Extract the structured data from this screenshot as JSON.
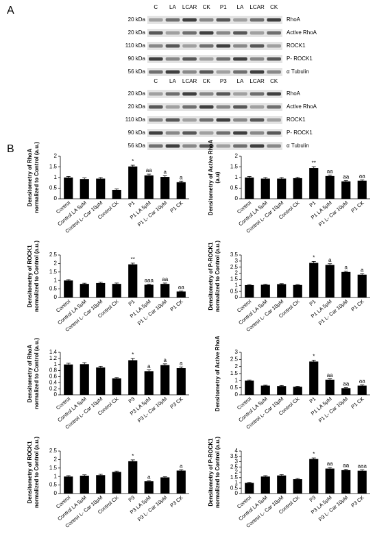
{
  "panel_labels": [
    "A",
    "B"
  ],
  "blots": [
    {
      "lanes": [
        "C",
        "LA",
        "LCAR",
        "CK",
        "P1",
        "LA",
        "LCAR",
        "CK"
      ],
      "rows": [
        {
          "size": "20 kDa",
          "name": "RhoA"
        },
        {
          "size": "20 kDa",
          "name": "Active RhoA"
        },
        {
          "size": "110 kDa",
          "name": "ROCK1"
        },
        {
          "size": "90 kDa",
          "name": "P- ROCK1"
        },
        {
          "size": "56 kDa",
          "name": "α Tubulin"
        }
      ]
    },
    {
      "lanes": [
        "C",
        "LA",
        "LCAR",
        "CK",
        "P3",
        "LA",
        "LCAR",
        "CK"
      ],
      "rows": [
        {
          "size": "20 kDa",
          "name": "RhoA"
        },
        {
          "size": "20 kDa",
          "name": "Active RhoA"
        },
        {
          "size": "110 kDa",
          "name": "ROCK1"
        },
        {
          "size": "90 kDa",
          "name": "P- ROCK1"
        },
        {
          "size": "56 kDa",
          "name": "α Tubulin"
        }
      ]
    }
  ],
  "chart_data": [
    {
      "type": "bar",
      "ylabel": [
        "Densitometry of RhoA",
        "normalized to Control (a.u.)"
      ],
      "categories": [
        "Control",
        "Control LA 5μM",
        "Control L- Car 10μM",
        "Control CK",
        "P1",
        "P1 LA 5μM",
        "P1 L- Car 10μM",
        "P1 CK"
      ],
      "values": [
        1.0,
        0.93,
        0.95,
        0.42,
        1.52,
        1.1,
        1.03,
        0.78
      ],
      "errors": [
        0.05,
        0.05,
        0.05,
        0.04,
        0.06,
        0.06,
        0.06,
        0.05
      ],
      "annotations": [
        null,
        null,
        null,
        null,
        "*",
        "aa",
        "a",
        "a"
      ],
      "color": "#000000",
      "ylim": [
        0,
        2
      ],
      "yticks": [
        0,
        0.5,
        1,
        1.5,
        2
      ]
    },
    {
      "type": "bar",
      "ylabel": [
        "Densitometry of Active RhoA",
        "(a.u)"
      ],
      "categories": [
        "Control",
        "Control LA 5μM",
        "Control L- Car 10μM",
        "Control CK",
        "P1",
        "P1 LA 5μM",
        "P1 L- Car 10μM",
        "P1 CK"
      ],
      "values": [
        1.0,
        0.95,
        0.95,
        0.97,
        1.45,
        1.07,
        0.82,
        0.85
      ],
      "errors": [
        0.05,
        0.05,
        0.05,
        0.05,
        0.06,
        0.05,
        0.04,
        0.04
      ],
      "annotations": [
        null,
        null,
        null,
        null,
        "**",
        "aa",
        "aa",
        "aa"
      ],
      "color": "#000000",
      "ylim": [
        0,
        2
      ],
      "yticks": [
        0,
        0.5,
        1,
        1.5,
        2
      ]
    },
    {
      "type": "bar",
      "ylabel": [
        "Densitometry of ROCK1",
        "normalized to Control (a.u.)"
      ],
      "categories": [
        "Control",
        "Control LA 5μM",
        "Control L- Car 10μM",
        "Control CK",
        "P1",
        "P1 LA 5μM",
        "P1 L- Car 10μM",
        "P1 CK"
      ],
      "values": [
        1.0,
        0.8,
        0.85,
        0.8,
        1.95,
        0.75,
        0.8,
        0.35
      ],
      "errors": [
        0.05,
        0.04,
        0.05,
        0.05,
        0.07,
        0.04,
        0.05,
        0.03
      ],
      "annotations": [
        null,
        null,
        null,
        null,
        "**",
        "aaa",
        "aa",
        "aa"
      ],
      "color": "#000000",
      "ylim": [
        0,
        2.5
      ],
      "yticks": [
        0,
        0.5,
        1,
        1.5,
        2,
        2.5
      ]
    },
    {
      "type": "bar",
      "ylabel": [
        "Densitometry of P-ROCK1",
        "normalized to Control (a.u.)"
      ],
      "categories": [
        "Control",
        "Control LA 5μM",
        "Control L- Car 10μM",
        "Control CK",
        "P1",
        "P1 LA 5μM",
        "P1 L- Car 10μM",
        "P1 CK"
      ],
      "values": [
        1.02,
        1.05,
        1.1,
        1.03,
        2.85,
        2.68,
        2.1,
        1.88
      ],
      "errors": [
        0.04,
        0.04,
        0.04,
        0.04,
        0.12,
        0.1,
        0.08,
        0.08
      ],
      "annotations": [
        null,
        null,
        null,
        null,
        "*",
        "a",
        "a",
        "a"
      ],
      "color": "#000000",
      "ylim": [
        0,
        3.5
      ],
      "yticks": [
        0,
        0.5,
        1,
        1.5,
        2,
        2.5,
        3,
        3.5
      ]
    },
    {
      "type": "bar",
      "ylabel": [
        "Densitometry of RhoA",
        "normalized to Control (a.u.)"
      ],
      "categories": [
        "Control",
        "Control LA 5μM",
        "Control L- Car 10μM",
        "Control CK",
        "P3",
        "P3 LA 5μM",
        "P3 L- Car 10μM",
        "P3 CK"
      ],
      "values": [
        1.0,
        1.01,
        0.9,
        0.54,
        1.14,
        0.78,
        0.98,
        0.88
      ],
      "errors": [
        0.04,
        0.05,
        0.04,
        0.03,
        0.06,
        0.04,
        0.04,
        0.04
      ],
      "annotations": [
        null,
        null,
        null,
        null,
        "*",
        "a",
        "a",
        "a"
      ],
      "color": "#000000",
      "ylim": [
        0,
        1.4
      ],
      "yticks": [
        0,
        0.2,
        0.4,
        0.6,
        0.8,
        1,
        1.2,
        1.4
      ]
    },
    {
      "type": "bar",
      "ylabel": [
        "Densitometry of Active RhoA"
      ],
      "categories": [
        "Control",
        "Control LA 5μM",
        "Control L- Car 10μM",
        "Control CK",
        "P1",
        "P1 LA 5μM",
        "P1 L- Car 10μM",
        "P1 CK"
      ],
      "values": [
        1.0,
        0.65,
        0.62,
        0.57,
        2.35,
        1.07,
        0.47,
        0.65
      ],
      "errors": [
        0.05,
        0.03,
        0.04,
        0.04,
        0.1,
        0.06,
        0.04,
        0.05
      ],
      "annotations": [
        null,
        null,
        null,
        null,
        "*",
        "aa",
        "aa",
        "aa"
      ],
      "color": "#000000",
      "ylim": [
        0,
        3
      ],
      "yticks": [
        0,
        0.5,
        1,
        1.5,
        2,
        2.5,
        3
      ]
    },
    {
      "type": "bar",
      "ylabel": [
        "Densitometry of ROCK1",
        "normalized to Control (a.u.)"
      ],
      "categories": [
        "Control",
        "Control LA 5μM",
        "Control L- Car 10μM",
        "Control CK",
        "P3",
        "P3 LA 5μM",
        "P3 L- Car 10μM",
        "P3 CK"
      ],
      "values": [
        1.0,
        1.05,
        1.08,
        1.27,
        1.9,
        0.72,
        0.95,
        1.35
      ],
      "errors": [
        0.05,
        0.05,
        0.05,
        0.05,
        0.08,
        0.04,
        0.04,
        0.05
      ],
      "annotations": [
        null,
        null,
        null,
        null,
        "*",
        "a",
        null,
        "a"
      ],
      "color": "#000000",
      "ylim": [
        0,
        2.5
      ],
      "yticks": [
        0,
        0.5,
        1,
        1.5,
        2,
        2.5
      ]
    },
    {
      "type": "bar",
      "ylabel": [
        "Densitometry of P-ROCK1",
        "normalized to Control (a.u.)"
      ],
      "categories": [
        "Control",
        "Control LA 5μM",
        "Control L- Car 10μM",
        "Control CK",
        "P3",
        "P3 LA 5μM",
        "P3 L- Car 10μM",
        "P3 CK"
      ],
      "values": [
        1.0,
        1.6,
        1.7,
        1.35,
        3.25,
        2.35,
        2.2,
        2.15
      ],
      "errors": [
        0.05,
        0.08,
        0.08,
        0.07,
        0.1,
        0.1,
        0.09,
        0.08
      ],
      "annotations": [
        null,
        null,
        null,
        null,
        "*",
        "aa",
        "aa",
        "aaa"
      ],
      "color": "#000000",
      "ylim": [
        0,
        4
      ],
      "yticks": [
        0,
        0.5,
        1,
        1.5,
        2,
        2.5,
        3,
        3.5,
        4
      ]
    }
  ]
}
